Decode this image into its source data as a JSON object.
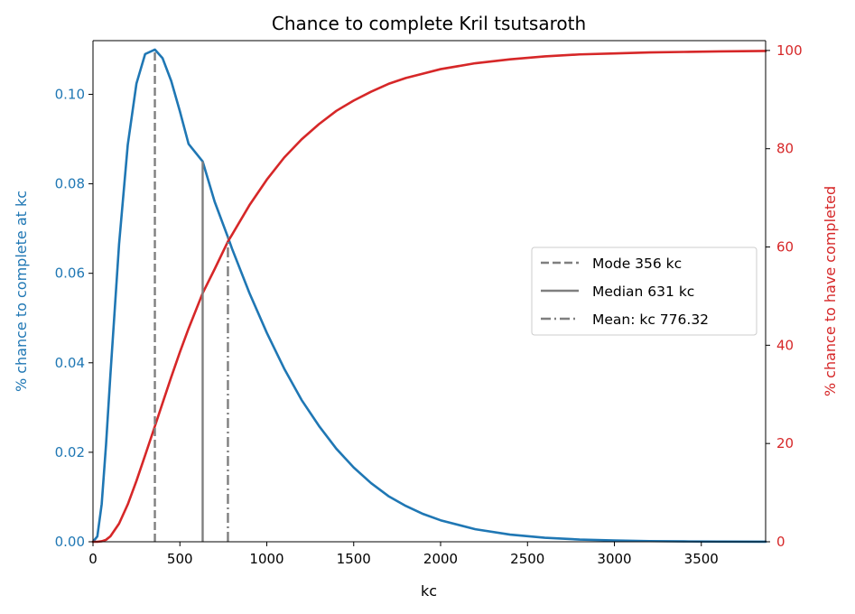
{
  "chart_data": {
    "type": "line",
    "title": "Chance to complete Kril tsutsaroth",
    "xlabel": "kc",
    "ylabel_left": "% chance to complete at kc",
    "ylabel_right": "% chance to have completed",
    "xlim": [
      0,
      3870
    ],
    "ylim_left": [
      0,
      0.112
    ],
    "ylim_right": [
      0,
      102
    ],
    "x_ticks": [
      0,
      500,
      1000,
      1500,
      2000,
      2500,
      3000,
      3500
    ],
    "y_left_ticks": [
      0.0,
      0.02,
      0.04,
      0.06,
      0.08,
      0.1
    ],
    "y_left_tick_labels": [
      "0.00",
      "0.02",
      "0.04",
      "0.06",
      "0.08",
      "0.10"
    ],
    "y_right_ticks": [
      0,
      20,
      40,
      60,
      80,
      100
    ],
    "grid": false,
    "legend_position": "center-right",
    "colors": {
      "left_axis": "#1f77b4",
      "right_axis": "#d62728",
      "markers": "#7f7f7f"
    },
    "series": [
      {
        "name": "% chance to complete at kc",
        "axis": "left",
        "color": "#1f77b4",
        "x": [
          0,
          25,
          50,
          75,
          100,
          150,
          200,
          250,
          300,
          356,
          400,
          450,
          500,
          550,
          631,
          700,
          776,
          800,
          900,
          1000,
          1100,
          1200,
          1300,
          1400,
          1500,
          1600,
          1700,
          1800,
          1900,
          2000,
          2200,
          2400,
          2600,
          2800,
          3000,
          3200,
          3400,
          3600,
          3870
        ],
        "y": [
          0.0,
          0.0012,
          0.0084,
          0.0217,
          0.0372,
          0.0665,
          0.0887,
          0.1024,
          0.109,
          0.11,
          0.1081,
          0.103,
          0.0962,
          0.0889,
          0.085,
          0.076,
          0.0681,
          0.0655,
          0.0556,
          0.0467,
          0.0387,
          0.0317,
          0.0259,
          0.0208,
          0.0166,
          0.0131,
          0.0102,
          0.008,
          0.0062,
          0.0048,
          0.0028,
          0.0016,
          0.0009,
          0.0005,
          0.0003,
          0.00015,
          8e-05,
          4e-05,
          1e-05
        ]
      },
      {
        "name": "% chance to have completed",
        "axis": "right",
        "color": "#d62728",
        "x": [
          0,
          25,
          50,
          75,
          100,
          150,
          200,
          250,
          300,
          356,
          400,
          450,
          500,
          550,
          631,
          700,
          776,
          800,
          900,
          1000,
          1100,
          1200,
          1300,
          1400,
          1500,
          1600,
          1700,
          1800,
          1900,
          2000,
          2200,
          2400,
          2600,
          2800,
          3000,
          3200,
          3400,
          3600,
          3870
        ],
        "y": [
          0.0,
          0.0,
          0.1,
          0.4,
          1.1,
          3.7,
          7.6,
          12.4,
          17.6,
          23.5,
          28.2,
          33.5,
          38.6,
          43.4,
          50.6,
          55.5,
          61.1,
          62.5,
          68.5,
          73.7,
          78.2,
          81.9,
          85.0,
          87.7,
          89.8,
          91.6,
          93.2,
          94.4,
          95.3,
          96.2,
          97.4,
          98.2,
          98.8,
          99.2,
          99.4,
          99.6,
          99.7,
          99.8,
          99.9
        ]
      }
    ],
    "markers": [
      {
        "label": "Mode 356 kc",
        "x": 356,
        "y_top": 0.11,
        "style": "dashed"
      },
      {
        "label": "Median 631 kc",
        "x": 631,
        "y_top": 0.085,
        "style": "solid"
      },
      {
        "label": "Mean: kc 776.32",
        "x": 776.32,
        "y_top": 0.0681,
        "style": "dashdot"
      }
    ]
  }
}
